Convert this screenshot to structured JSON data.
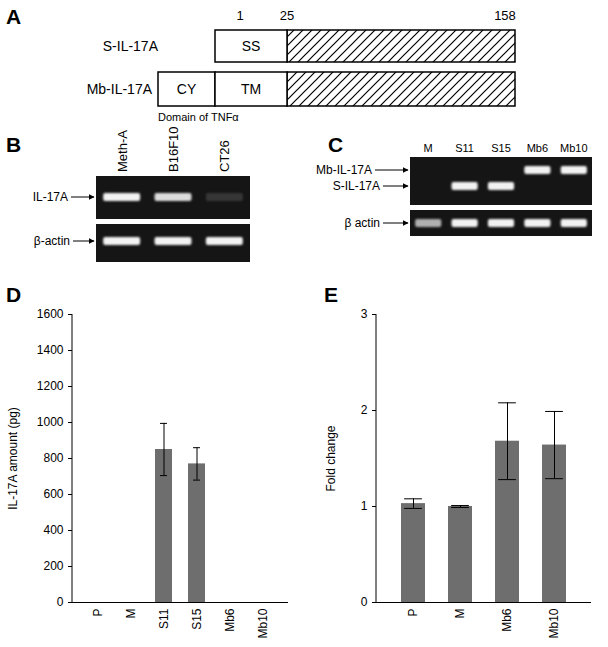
{
  "diagram": {
    "panel": "A",
    "scale_marks": [
      1,
      25,
      158
    ],
    "rows": [
      {
        "name": "S-IL-17A",
        "domains": [
          "SS"
        ]
      },
      {
        "name": "Mb-IL-17A",
        "domains": [
          "CY",
          "TM"
        ]
      }
    ],
    "note": "Domain of TNFα"
  },
  "gels": [
    {
      "panel": "B",
      "lanes": [
        "Meth-A",
        "B16F10",
        "CT26"
      ],
      "rows": [
        {
          "label": "IL-17A",
          "bands": [
            1,
            0.9,
            0.15
          ]
        },
        {
          "label": "β-actin",
          "bands": [
            1,
            1,
            1
          ]
        }
      ]
    },
    {
      "panel": "C",
      "lanes": [
        "M",
        "S11",
        "S15",
        "Mb6",
        "Mb10"
      ],
      "rows": [
        {
          "label": "Mb-IL-17A",
          "bands": [
            0,
            0,
            0,
            1,
            1
          ]
        },
        {
          "label": "S-IL-17A",
          "bands": [
            0,
            1,
            1,
            0,
            0
          ]
        },
        {
          "label": "β actin",
          "bands": [
            0.7,
            1,
            1,
            1,
            1
          ]
        }
      ]
    }
  ],
  "chart_data": [
    {
      "panel": "D",
      "type": "bar",
      "categories": [
        "P",
        "M",
        "S11",
        "S15",
        "Mb6",
        "Mb10"
      ],
      "values": [
        0,
        0,
        850,
        770,
        0,
        0
      ],
      "errors": [
        null,
        null,
        145,
        90,
        null,
        null
      ],
      "ylabel": "IL-17A amount (pg)",
      "ylim": [
        0,
        1600
      ],
      "yticks": [
        0,
        200,
        400,
        600,
        800,
        1000,
        1200,
        1400,
        1600
      ],
      "color": "#6e6e6e"
    },
    {
      "panel": "E",
      "type": "bar",
      "categories": [
        "P",
        "M",
        "Mb6",
        "Mb10"
      ],
      "values": [
        1.03,
        1.0,
        1.68,
        1.64
      ],
      "errors": [
        0.05,
        0.01,
        0.4,
        0.35
      ],
      "ylabel": "Fold change",
      "ylim": [
        0,
        3
      ],
      "yticks": [
        0,
        1,
        2,
        3
      ],
      "color": "#6e6e6e"
    }
  ]
}
